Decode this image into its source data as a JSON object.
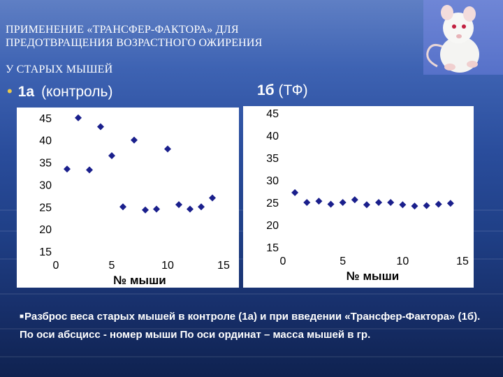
{
  "slide": {
    "title_lines": [
      "ПРИМЕНЕНИЕ «ТРАНСФЕР-ФАКТОРА» ДЛЯ",
      "ПРЕДОТВРАЩЕНИЯ ВОЗРАСТНОГО ОЖИРЕНИЯ",
      "У СТАРЫХ МЫШЕЙ"
    ],
    "label_a": "1а",
    "label_a_note": "(контроль)",
    "label_b": "1б",
    "label_b_note": "(ТФ)",
    "caption": "Разброс веса старых мышей в контроле (1а) и при введении «Трансфер-Фактора» (1б). По оси абсцисс - номер мыши По оси ординат – масса мышей в гр.",
    "photo_icon": "white-mouse-photo"
  },
  "chart_data": [
    {
      "type": "scatter",
      "title": "",
      "xlabel": "№ мыши",
      "ylabel": "",
      "xlim": [
        0,
        15
      ],
      "ylim": [
        15,
        47
      ],
      "xticks": [
        0,
        5,
        10,
        15
      ],
      "yticks": [
        15,
        20,
        25,
        30,
        35,
        40,
        45
      ],
      "grid": false,
      "marker": "diamond",
      "color": "#1a1f8c",
      "x": [
        1,
        2,
        3,
        4,
        5,
        6,
        7,
        8,
        9,
        10,
        11,
        12,
        13,
        14
      ],
      "y": [
        33.5,
        45,
        33.3,
        43,
        36.5,
        25,
        40,
        24.3,
        24.5,
        38,
        25.5,
        24.5,
        25,
        27
      ]
    },
    {
      "type": "scatter",
      "title": "",
      "xlabel": "№ мыши",
      "ylabel": "",
      "xlim": [
        0,
        15
      ],
      "ylim": [
        15,
        45
      ],
      "xticks": [
        0,
        5,
        10,
        15
      ],
      "yticks": [
        15,
        20,
        25,
        30,
        35,
        40,
        45
      ],
      "grid": false,
      "marker": "diamond",
      "color": "#1a1f8c",
      "x": [
        1,
        2,
        3,
        4,
        5,
        6,
        7,
        8,
        9,
        10,
        11,
        12,
        13,
        14
      ],
      "y": [
        27.2,
        25,
        25.3,
        24.6,
        25,
        25.6,
        24.5,
        25,
        25,
        24.5,
        24.2,
        24.3,
        24.6,
        24.8
      ]
    }
  ]
}
